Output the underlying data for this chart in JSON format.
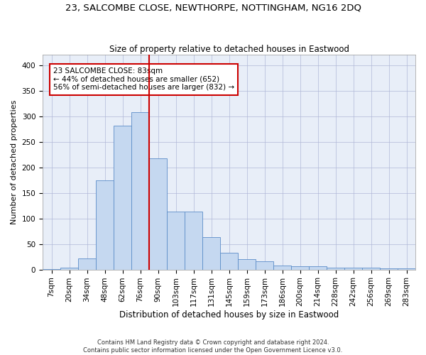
{
  "title1": "23, SALCOMBE CLOSE, NEWTHORPE, NOTTINGHAM, NG16 2DQ",
  "title2": "Size of property relative to detached houses in Eastwood",
  "xlabel": "Distribution of detached houses by size in Eastwood",
  "ylabel": "Number of detached properties",
  "footnote1": "Contains HM Land Registry data © Crown copyright and database right 2024.",
  "footnote2": "Contains public sector information licensed under the Open Government Licence v3.0.",
  "bar_labels": [
    "7sqm",
    "20sqm",
    "34sqm",
    "48sqm",
    "62sqm",
    "76sqm",
    "90sqm",
    "103sqm",
    "117sqm",
    "131sqm",
    "145sqm",
    "159sqm",
    "173sqm",
    "186sqm",
    "200sqm",
    "214sqm",
    "228sqm",
    "242sqm",
    "256sqm",
    "269sqm",
    "283sqm"
  ],
  "bar_heights": [
    1,
    4,
    22,
    175,
    282,
    308,
    218,
    113,
    113,
    63,
    33,
    20,
    16,
    8,
    6,
    7,
    4,
    3,
    3,
    2,
    2
  ],
  "bar_color": "#C5D8F0",
  "bar_edge_color": "#5B8DC8",
  "vline_color": "#CC0000",
  "annotation_text": "23 SALCOMBE CLOSE: 83sqm\n← 44% of detached houses are smaller (652)\n56% of semi-detached houses are larger (832) →",
  "annotation_box_color": "#CC0000",
  "annotation_fontsize": 7.5,
  "ylim": [
    0,
    420
  ],
  "yticks": [
    0,
    50,
    100,
    150,
    200,
    250,
    300,
    350,
    400
  ],
  "grid_color": "#B0B8D8",
  "bg_color": "#E8EEF8",
  "title1_fontsize": 9.5,
  "title2_fontsize": 8.5,
  "xlabel_fontsize": 8.5,
  "ylabel_fontsize": 8,
  "tick_fontsize": 7.5,
  "footnote_fontsize": 6
}
